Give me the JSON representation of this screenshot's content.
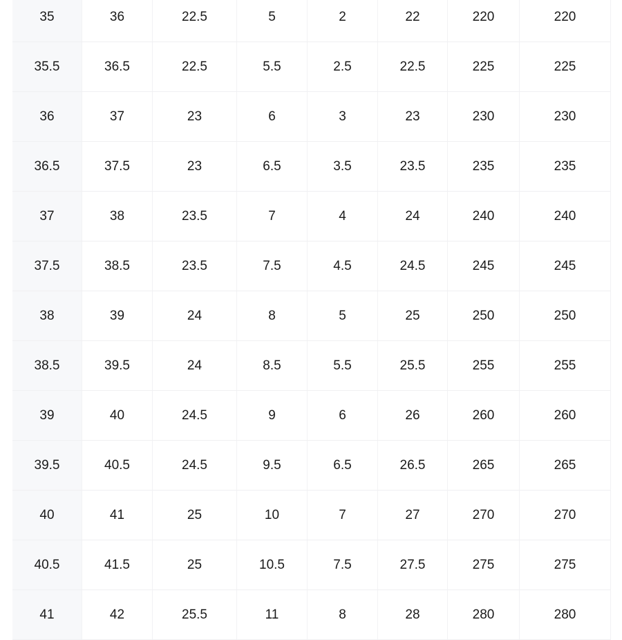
{
  "table": {
    "rows": [
      [
        "35",
        "36",
        "22.5",
        "5",
        "2",
        "22",
        "220",
        "220"
      ],
      [
        "35.5",
        "36.5",
        "22.5",
        "5.5",
        "2.5",
        "22.5",
        "225",
        "225"
      ],
      [
        "36",
        "37",
        "23",
        "6",
        "3",
        "23",
        "230",
        "230"
      ],
      [
        "36.5",
        "37.5",
        "23",
        "6.5",
        "3.5",
        "23.5",
        "235",
        "235"
      ],
      [
        "37",
        "38",
        "23.5",
        "7",
        "4",
        "24",
        "240",
        "240"
      ],
      [
        "37.5",
        "38.5",
        "23.5",
        "7.5",
        "4.5",
        "24.5",
        "245",
        "245"
      ],
      [
        "38",
        "39",
        "24",
        "8",
        "5",
        "25",
        "250",
        "250"
      ],
      [
        "38.5",
        "39.5",
        "24",
        "8.5",
        "5.5",
        "25.5",
        "255",
        "255"
      ],
      [
        "39",
        "40",
        "24.5",
        "9",
        "6",
        "26",
        "260",
        "260"
      ],
      [
        "39.5",
        "40.5",
        "24.5",
        "9.5",
        "6.5",
        "26.5",
        "265",
        "265"
      ],
      [
        "40",
        "41",
        "25",
        "10",
        "7",
        "27",
        "270",
        "270"
      ],
      [
        "40.5",
        "41.5",
        "25",
        "10.5",
        "7.5",
        "27.5",
        "275",
        "275"
      ],
      [
        "41",
        "42",
        "25.5",
        "11",
        "8",
        "28",
        "280",
        "280"
      ]
    ]
  }
}
